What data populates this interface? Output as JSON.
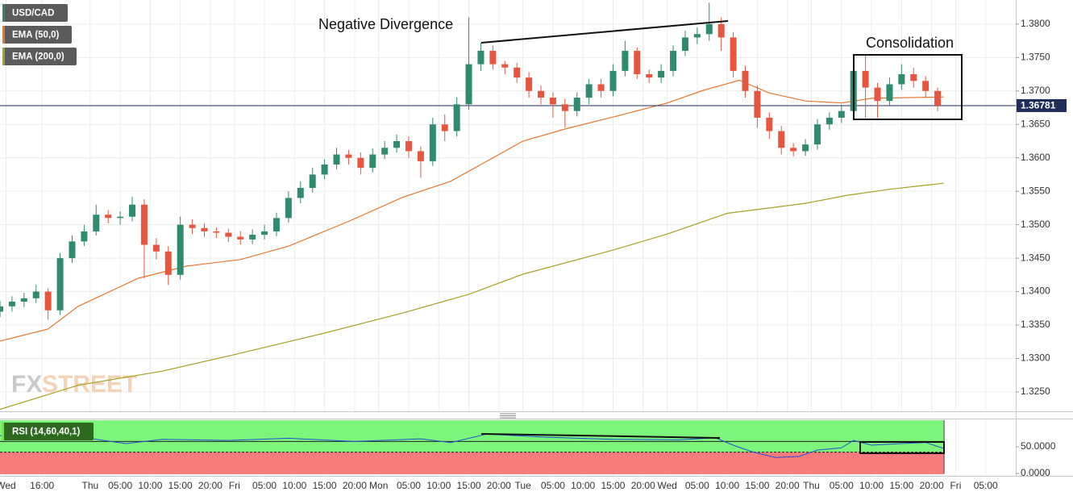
{
  "chart_data": {
    "type": "candlestick",
    "annotations": [
      "Negative Divergence",
      "Consolidation"
    ],
    "watermark": {
      "left": "FX",
      "right": "STREET"
    },
    "xlim": [
      0,
      169
    ],
    "ylim": [
      1.3221,
      1.3836
    ],
    "grid": true,
    "yticks": [
      {
        "value": 1.325,
        "label": "1.3250"
      },
      {
        "value": 1.33,
        "label": "1.3300"
      },
      {
        "value": 1.335,
        "label": "1.3350"
      },
      {
        "value": 1.34,
        "label": "1.3400"
      },
      {
        "value": 1.345,
        "label": "1.3450"
      },
      {
        "value": 1.35,
        "label": "1.3500"
      },
      {
        "value": 1.355,
        "label": "1.3550"
      },
      {
        "value": 1.36,
        "label": "1.3600"
      },
      {
        "value": 1.365,
        "label": "1.3650"
      },
      {
        "value": 1.37,
        "label": "1.3700"
      },
      {
        "value": 1.375,
        "label": "1.3750"
      },
      {
        "value": 1.38,
        "label": "1.3800"
      }
    ],
    "xticks": [
      {
        "value": 1,
        "label": "Wed"
      },
      {
        "value": 7,
        "label": "16:00"
      },
      {
        "value": 15,
        "label": "Thu"
      },
      {
        "value": 20,
        "label": "05:00"
      },
      {
        "value": 25,
        "label": "10:00"
      },
      {
        "value": 30,
        "label": "15:00"
      },
      {
        "value": 35,
        "label": "20:00"
      },
      {
        "value": 39,
        "label": "Fri"
      },
      {
        "value": 44,
        "label": "05:00"
      },
      {
        "value": 49,
        "label": "10:00"
      },
      {
        "value": 54,
        "label": "15:00"
      },
      {
        "value": 59,
        "label": "20:00"
      },
      {
        "value": 63,
        "label": "Mon"
      },
      {
        "value": 68,
        "label": "05:00"
      },
      {
        "value": 73,
        "label": "10:00"
      },
      {
        "value": 78,
        "label": "15:00"
      },
      {
        "value": 83,
        "label": "20:00"
      },
      {
        "value": 87,
        "label": "Tue"
      },
      {
        "value": 92,
        "label": "05:00"
      },
      {
        "value": 97,
        "label": "10:00"
      },
      {
        "value": 102,
        "label": "15:00"
      },
      {
        "value": 107,
        "label": "20:00"
      },
      {
        "value": 111,
        "label": "Wed"
      },
      {
        "value": 116,
        "label": "05:00"
      },
      {
        "value": 121,
        "label": "10:00"
      },
      {
        "value": 126,
        "label": "15:00"
      },
      {
        "value": 131,
        "label": "20:00"
      },
      {
        "value": 135,
        "label": "Thu"
      },
      {
        "value": 140,
        "label": "05:00"
      },
      {
        "value": 145,
        "label": "10:00"
      },
      {
        "value": 150,
        "label": "15:00"
      },
      {
        "value": 155,
        "label": "20:00"
      },
      {
        "value": 159,
        "label": "Fri"
      },
      {
        "value": 164,
        "label": "05:00"
      }
    ],
    "last_price": 1.36781,
    "last_price_color": "#1f2d5a",
    "candles": {
      "name": "USD/CAD",
      "legend_color": "#2e8b6e",
      "up_color": "#2e8b6e",
      "down_color": "#e8553f",
      "x": [
        0,
        2,
        4,
        6,
        8,
        10,
        12,
        14,
        16,
        18,
        20,
        22,
        24,
        26,
        28,
        30,
        32,
        34,
        36,
        38,
        40,
        42,
        44,
        46,
        48,
        50,
        52,
        54,
        56,
        58,
        60,
        62,
        64,
        66,
        68,
        70,
        72,
        74,
        76,
        78,
        80,
        82,
        84,
        86,
        88,
        90,
        92,
        94,
        96,
        98,
        100,
        102,
        104,
        106,
        108,
        110,
        112,
        114,
        116,
        118,
        120,
        122,
        124,
        126,
        128,
        130,
        132,
        134,
        136,
        138,
        140,
        142,
        144,
        146,
        148,
        150,
        152,
        154,
        156
      ],
      "open": [
        1.337,
        1.3378,
        1.3385,
        1.339,
        1.34,
        1.3372,
        1.345,
        1.3475,
        1.349,
        1.3515,
        1.351,
        1.3512,
        1.353,
        1.347,
        1.346,
        1.3425,
        1.35,
        1.3495,
        1.349,
        1.3488,
        1.3482,
        1.3478,
        1.3485,
        1.349,
        1.351,
        1.354,
        1.3555,
        1.3575,
        1.359,
        1.3605,
        1.36,
        1.3585,
        1.3605,
        1.3615,
        1.3625,
        1.361,
        1.3595,
        1.365,
        1.364,
        1.368,
        1.374,
        1.376,
        1.374,
        1.3735,
        1.372,
        1.37,
        1.369,
        1.368,
        1.367,
        1.369,
        1.371,
        1.37,
        1.373,
        1.376,
        1.3725,
        1.372,
        1.373,
        1.376,
        1.378,
        1.3785,
        1.38,
        1.378,
        1.373,
        1.37,
        1.366,
        1.364,
        1.3615,
        1.361,
        1.362,
        1.365,
        1.366,
        1.367,
        1.373,
        1.3705,
        1.3685,
        1.371,
        1.3725,
        1.3715,
        1.37
      ],
      "high": [
        1.3386,
        1.3393,
        1.3398,
        1.341,
        1.3405,
        1.3458,
        1.3484,
        1.35,
        1.353,
        1.3522,
        1.352,
        1.3542,
        1.3538,
        1.348,
        1.3468,
        1.3512,
        1.3508,
        1.3502,
        1.3496,
        1.3494,
        1.349,
        1.3493,
        1.35,
        1.3518,
        1.355,
        1.3565,
        1.3585,
        1.3598,
        1.3615,
        1.3612,
        1.3608,
        1.3614,
        1.3625,
        1.3635,
        1.3632,
        1.3617,
        1.366,
        1.3665,
        1.369,
        1.381,
        1.3772,
        1.3768,
        1.3745,
        1.3742,
        1.3728,
        1.3708,
        1.3698,
        1.3688,
        1.3698,
        1.3718,
        1.3718,
        1.374,
        1.3775,
        1.3765,
        1.3732,
        1.374,
        1.3768,
        1.379,
        1.3795,
        1.3832,
        1.381,
        1.3788,
        1.3738,
        1.3708,
        1.3668,
        1.3648,
        1.3622,
        1.3628,
        1.3658,
        1.3668,
        1.368,
        1.3745,
        1.3755,
        1.3712,
        1.372,
        1.374,
        1.3735,
        1.3722,
        1.3705
      ],
      "low": [
        1.3362,
        1.337,
        1.3377,
        1.3383,
        1.3358,
        1.3365,
        1.3443,
        1.3468,
        1.3484,
        1.3502,
        1.35,
        1.3505,
        1.342,
        1.3448,
        1.341,
        1.3418,
        1.3486,
        1.3482,
        1.348,
        1.3474,
        1.347,
        1.3471,
        1.3478,
        1.3483,
        1.3503,
        1.3532,
        1.3548,
        1.3568,
        1.3583,
        1.359,
        1.3575,
        1.3578,
        1.3598,
        1.3608,
        1.36,
        1.357,
        1.3588,
        1.3625,
        1.3632,
        1.3672,
        1.373,
        1.3732,
        1.3725,
        1.3712,
        1.369,
        1.368,
        1.366,
        1.3645,
        1.3662,
        1.368,
        1.369,
        1.3692,
        1.3722,
        1.3718,
        1.3712,
        1.3712,
        1.3722,
        1.3752,
        1.377,
        1.3775,
        1.376,
        1.372,
        1.369,
        1.3645,
        1.3628,
        1.3605,
        1.3602,
        1.3603,
        1.3612,
        1.3642,
        1.3652,
        1.3662,
        1.366,
        1.366,
        1.3678,
        1.3702,
        1.3705,
        1.369,
        1.367
      ],
      "close": [
        1.3378,
        1.3385,
        1.339,
        1.34,
        1.3372,
        1.345,
        1.3475,
        1.349,
        1.3515,
        1.351,
        1.3512,
        1.353,
        1.347,
        1.346,
        1.3425,
        1.35,
        1.3495,
        1.349,
        1.3488,
        1.3482,
        1.3478,
        1.3485,
        1.349,
        1.351,
        1.354,
        1.3555,
        1.3575,
        1.359,
        1.3605,
        1.36,
        1.3585,
        1.3605,
        1.3615,
        1.3625,
        1.361,
        1.3595,
        1.365,
        1.364,
        1.368,
        1.374,
        1.376,
        1.374,
        1.3735,
        1.372,
        1.37,
        1.369,
        1.368,
        1.367,
        1.369,
        1.371,
        1.37,
        1.373,
        1.376,
        1.3725,
        1.372,
        1.373,
        1.376,
        1.378,
        1.3785,
        1.38,
        1.378,
        1.373,
        1.37,
        1.366,
        1.364,
        1.3615,
        1.361,
        1.362,
        1.365,
        1.366,
        1.367,
        1.373,
        1.3705,
        1.3685,
        1.371,
        1.3725,
        1.3715,
        1.37,
        1.36781
      ]
    },
    "lines": [
      {
        "name": "EMA (50,0)",
        "color": "#e8772e",
        "x": [
          0,
          8,
          13,
          23,
          31,
          40,
          48,
          58,
          67,
          75,
          81,
          87,
          94,
          102,
          111,
          117,
          123,
          128,
          134,
          140,
          145,
          157
        ],
        "values": [
          1.3326,
          1.3344,
          1.3378,
          1.342,
          1.3438,
          1.3448,
          1.3468,
          1.3505,
          1.3541,
          1.3565,
          1.3595,
          1.3625,
          1.3643,
          1.3661,
          1.3682,
          1.3701,
          1.3716,
          1.3697,
          1.3685,
          1.3682,
          1.3689,
          1.3691
        ]
      },
      {
        "name": "EMA (200,0)",
        "color": "#a8a024",
        "x": [
          0,
          13,
          27,
          40,
          54,
          67,
          78,
          87,
          102,
          111,
          121,
          128,
          134,
          141,
          148,
          157
        ],
        "values": [
          1.3224,
          1.326,
          1.3281,
          1.3308,
          1.3338,
          1.3368,
          1.3396,
          1.3426,
          1.3462,
          1.3486,
          1.3517,
          1.3525,
          1.3532,
          1.3544,
          1.3553,
          1.3562
        ]
      }
    ],
    "rsi": {
      "name": "RSI (14,60,40,1)",
      "legend_color": "#7ddc5a",
      "color": "#2450d8",
      "upper": 60,
      "lower": 40,
      "upper_fill": "#7df57a",
      "lower_fill": "#f97c7c",
      "ylim": [
        0,
        100
      ],
      "yticks": [
        {
          "value": 50,
          "label": "50.0000"
        },
        {
          "value": 0,
          "label": "0.0000"
        }
      ],
      "x": [
        0,
        5,
        11,
        16,
        21,
        27,
        38,
        48,
        59,
        70,
        75,
        81,
        91,
        102,
        113,
        119,
        122,
        125,
        129,
        133,
        136,
        140,
        142,
        145,
        150,
        154,
        157
      ],
      "values": [
        71,
        67,
        76,
        64,
        56,
        64,
        62,
        66,
        60,
        65,
        58,
        74,
        68,
        64,
        63,
        67,
        53,
        41,
        30,
        32,
        44,
        48,
        62,
        53,
        56,
        58,
        47
      ]
    }
  }
}
